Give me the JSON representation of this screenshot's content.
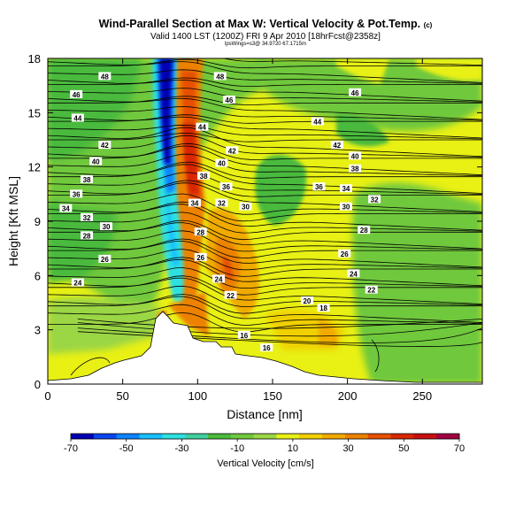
{
  "chart_data": {
    "type": "heatmap",
    "title": "Wind-Parallel Section at Max W: Vertical Velocity & Pot.Temp.",
    "title_mark": "(c)",
    "subtitle": "Valid 1400 LST (1200Z) FRI 9 Apr 2010 [18hrFcst@2358z]",
    "subtitle2": "lpsWings=s3@ 34.9720 67.1715m",
    "xlabel": "Distance [nm]",
    "ylabel": "Height [Kft MSL]",
    "xlim": [
      0,
      290
    ],
    "ylim": [
      0,
      18
    ],
    "xticks": [
      "0",
      "50",
      "100",
      "150",
      "200",
      "250"
    ],
    "xtick_values": [
      0,
      50,
      100,
      150,
      200,
      250
    ],
    "yticks": [
      "0",
      "3",
      "6",
      "9",
      "12",
      "15",
      "18"
    ],
    "ytick_values": [
      0,
      3,
      6,
      9,
      12,
      15,
      18
    ],
    "colorbar": {
      "label": "Vertical Velocity [cm/s]",
      "range": [
        -70,
        70
      ],
      "tick_labels": [
        "-70",
        "-50",
        "-30",
        "-10",
        "10",
        "30",
        "50",
        "70"
      ],
      "tick_values": [
        -70,
        -50,
        -30,
        -10,
        10,
        30,
        50,
        70
      ],
      "colors": [
        "#0000b4",
        "#0a46f0",
        "#0c84ff",
        "#18bfff",
        "#2ee0e0",
        "#40d0a0",
        "#4aba3c",
        "#70c83c",
        "#9bd645",
        "#e8f014",
        "#f0d000",
        "#f0aa00",
        "#ec8200",
        "#e65000",
        "#d82800",
        "#c81010",
        "#a00040"
      ]
    },
    "contour_labels": [
      {
        "t": "48",
        "x": 38,
        "y": 17.0
      },
      {
        "t": "46",
        "x": 19,
        "y": 16.0
      },
      {
        "t": "44",
        "x": 20,
        "y": 14.7
      },
      {
        "t": "42",
        "x": 38,
        "y": 13.2
      },
      {
        "t": "40",
        "x": 32,
        "y": 12.3
      },
      {
        "t": "38",
        "x": 26,
        "y": 11.3
      },
      {
        "t": "36",
        "x": 19,
        "y": 10.5
      },
      {
        "t": "34",
        "x": 12,
        "y": 9.7
      },
      {
        "t": "32",
        "x": 26,
        "y": 9.2
      },
      {
        "t": "30",
        "x": 39,
        "y": 8.7
      },
      {
        "t": "28",
        "x": 26,
        "y": 8.2
      },
      {
        "t": "26",
        "x": 38,
        "y": 6.9
      },
      {
        "t": "24",
        "x": 20,
        "y": 5.6
      },
      {
        "t": "48",
        "x": 115,
        "y": 17.0
      },
      {
        "t": "46",
        "x": 121,
        "y": 15.7
      },
      {
        "t": "44",
        "x": 103,
        "y": 14.2
      },
      {
        "t": "42",
        "x": 123,
        "y": 12.9
      },
      {
        "t": "40",
        "x": 116,
        "y": 12.2
      },
      {
        "t": "38",
        "x": 104,
        "y": 11.5
      },
      {
        "t": "36",
        "x": 119,
        "y": 10.9
      },
      {
        "t": "34",
        "x": 98,
        "y": 10.0
      },
      {
        "t": "32",
        "x": 116,
        "y": 10.0
      },
      {
        "t": "30",
        "x": 132,
        "y": 9.8
      },
      {
        "t": "28",
        "x": 102,
        "y": 8.4
      },
      {
        "t": "26",
        "x": 102,
        "y": 7.0
      },
      {
        "t": "24",
        "x": 114,
        "y": 5.8
      },
      {
        "t": "22",
        "x": 122,
        "y": 4.9
      },
      {
        "t": "20",
        "x": 173,
        "y": 4.6
      },
      {
        "t": "18",
        "x": 184,
        "y": 4.2
      },
      {
        "t": "16",
        "x": 131,
        "y": 2.7
      },
      {
        "t": "16",
        "x": 146,
        "y": 2.0
      },
      {
        "t": "46",
        "x": 205,
        "y": 16.1
      },
      {
        "t": "44",
        "x": 180,
        "y": 14.5
      },
      {
        "t": "42",
        "x": 193,
        "y": 13.2
      },
      {
        "t": "40",
        "x": 205,
        "y": 12.6
      },
      {
        "t": "38",
        "x": 205,
        "y": 11.9
      },
      {
        "t": "36",
        "x": 181,
        "y": 10.9
      },
      {
        "t": "34",
        "x": 199,
        "y": 10.8
      },
      {
        "t": "32",
        "x": 218,
        "y": 10.2
      },
      {
        "t": "30",
        "x": 199,
        "y": 9.8
      },
      {
        "t": "28",
        "x": 211,
        "y": 8.5
      },
      {
        "t": "26",
        "x": 198,
        "y": 7.2
      },
      {
        "t": "24",
        "x": 204,
        "y": 6.1
      },
      {
        "t": "22",
        "x": 216,
        "y": 5.2
      }
    ]
  }
}
